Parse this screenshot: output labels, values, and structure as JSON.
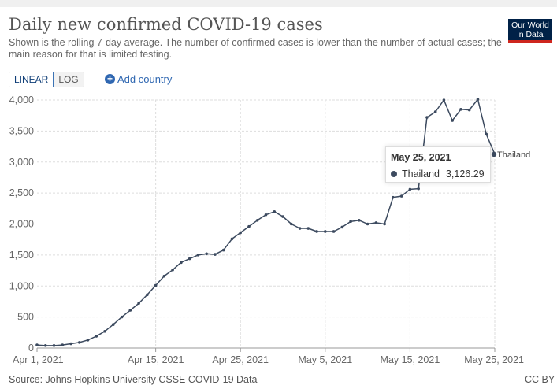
{
  "header": {
    "title": "Daily new confirmed COVID-19 cases",
    "subtitle": "Shown is the rolling 7-day average. The number of confirmed cases is lower than the number of actual cases; the main reason for that is limited testing.",
    "logo_line1": "Our World",
    "logo_line2": "in Data"
  },
  "controls": {
    "linear_label": "LINEAR",
    "log_label": "LOG",
    "add_country_label": "Add country"
  },
  "tooltip": {
    "date": "May 25, 2021",
    "series": "Thailand",
    "value": "3,126.29"
  },
  "footer": {
    "source": "Source: Johns Hopkins University CSSE COVID-19 Data",
    "license": "CC BY"
  },
  "colors": {
    "line": "#3c4a5f",
    "grid": "#dddddd",
    "axis": "#999999",
    "accent": "#2f67b1"
  },
  "chart_data": {
    "type": "line",
    "title": "Daily new confirmed COVID-19 cases",
    "xlabel": "",
    "ylabel": "",
    "ylim": [
      0,
      4000
    ],
    "yticks": [
      0,
      500,
      1000,
      1500,
      2000,
      2500,
      3000,
      3500,
      4000
    ],
    "ytick_labels": [
      "0",
      "500",
      "1,000",
      "1,500",
      "2,000",
      "2,500",
      "3,000",
      "3,500",
      "4,000"
    ],
    "xticks": [
      0,
      14,
      24,
      34,
      44,
      54
    ],
    "xtick_labels": [
      "Apr 1, 2021",
      "Apr 15, 2021",
      "Apr 25, 2021",
      "May 5, 2021",
      "May 15, 2021",
      "May 25, 2021"
    ],
    "x_start": "2021-04-01",
    "x_range_days": [
      0,
      54
    ],
    "series": [
      {
        "name": "Thailand",
        "x": [
          0,
          1,
          2,
          3,
          4,
          5,
          6,
          7,
          8,
          9,
          10,
          11,
          12,
          13,
          14,
          15,
          16,
          17,
          18,
          19,
          20,
          21,
          22,
          23,
          24,
          25,
          26,
          27,
          28,
          29,
          30,
          31,
          32,
          33,
          34,
          35,
          36,
          37,
          38,
          39,
          40,
          41,
          42,
          43,
          44,
          45,
          46,
          47,
          48,
          49,
          50,
          51,
          52,
          53,
          54
        ],
        "values": [
          50,
          40,
          40,
          50,
          70,
          90,
          130,
          190,
          270,
          380,
          500,
          610,
          720,
          860,
          1010,
          1160,
          1260,
          1380,
          1440,
          1500,
          1520,
          1510,
          1580,
          1760,
          1860,
          1960,
          2060,
          2150,
          2200,
          2120,
          2000,
          1930,
          1930,
          1880,
          1880,
          1880,
          1950,
          2040,
          2060,
          2000,
          2020,
          2000,
          2430,
          2450,
          2560,
          2570,
          3720,
          3810,
          4000,
          3670,
          3850,
          3840,
          4010,
          3450,
          3126.29
        ]
      }
    ],
    "series_end_label": "Thailand",
    "legend": "end-of-line"
  }
}
